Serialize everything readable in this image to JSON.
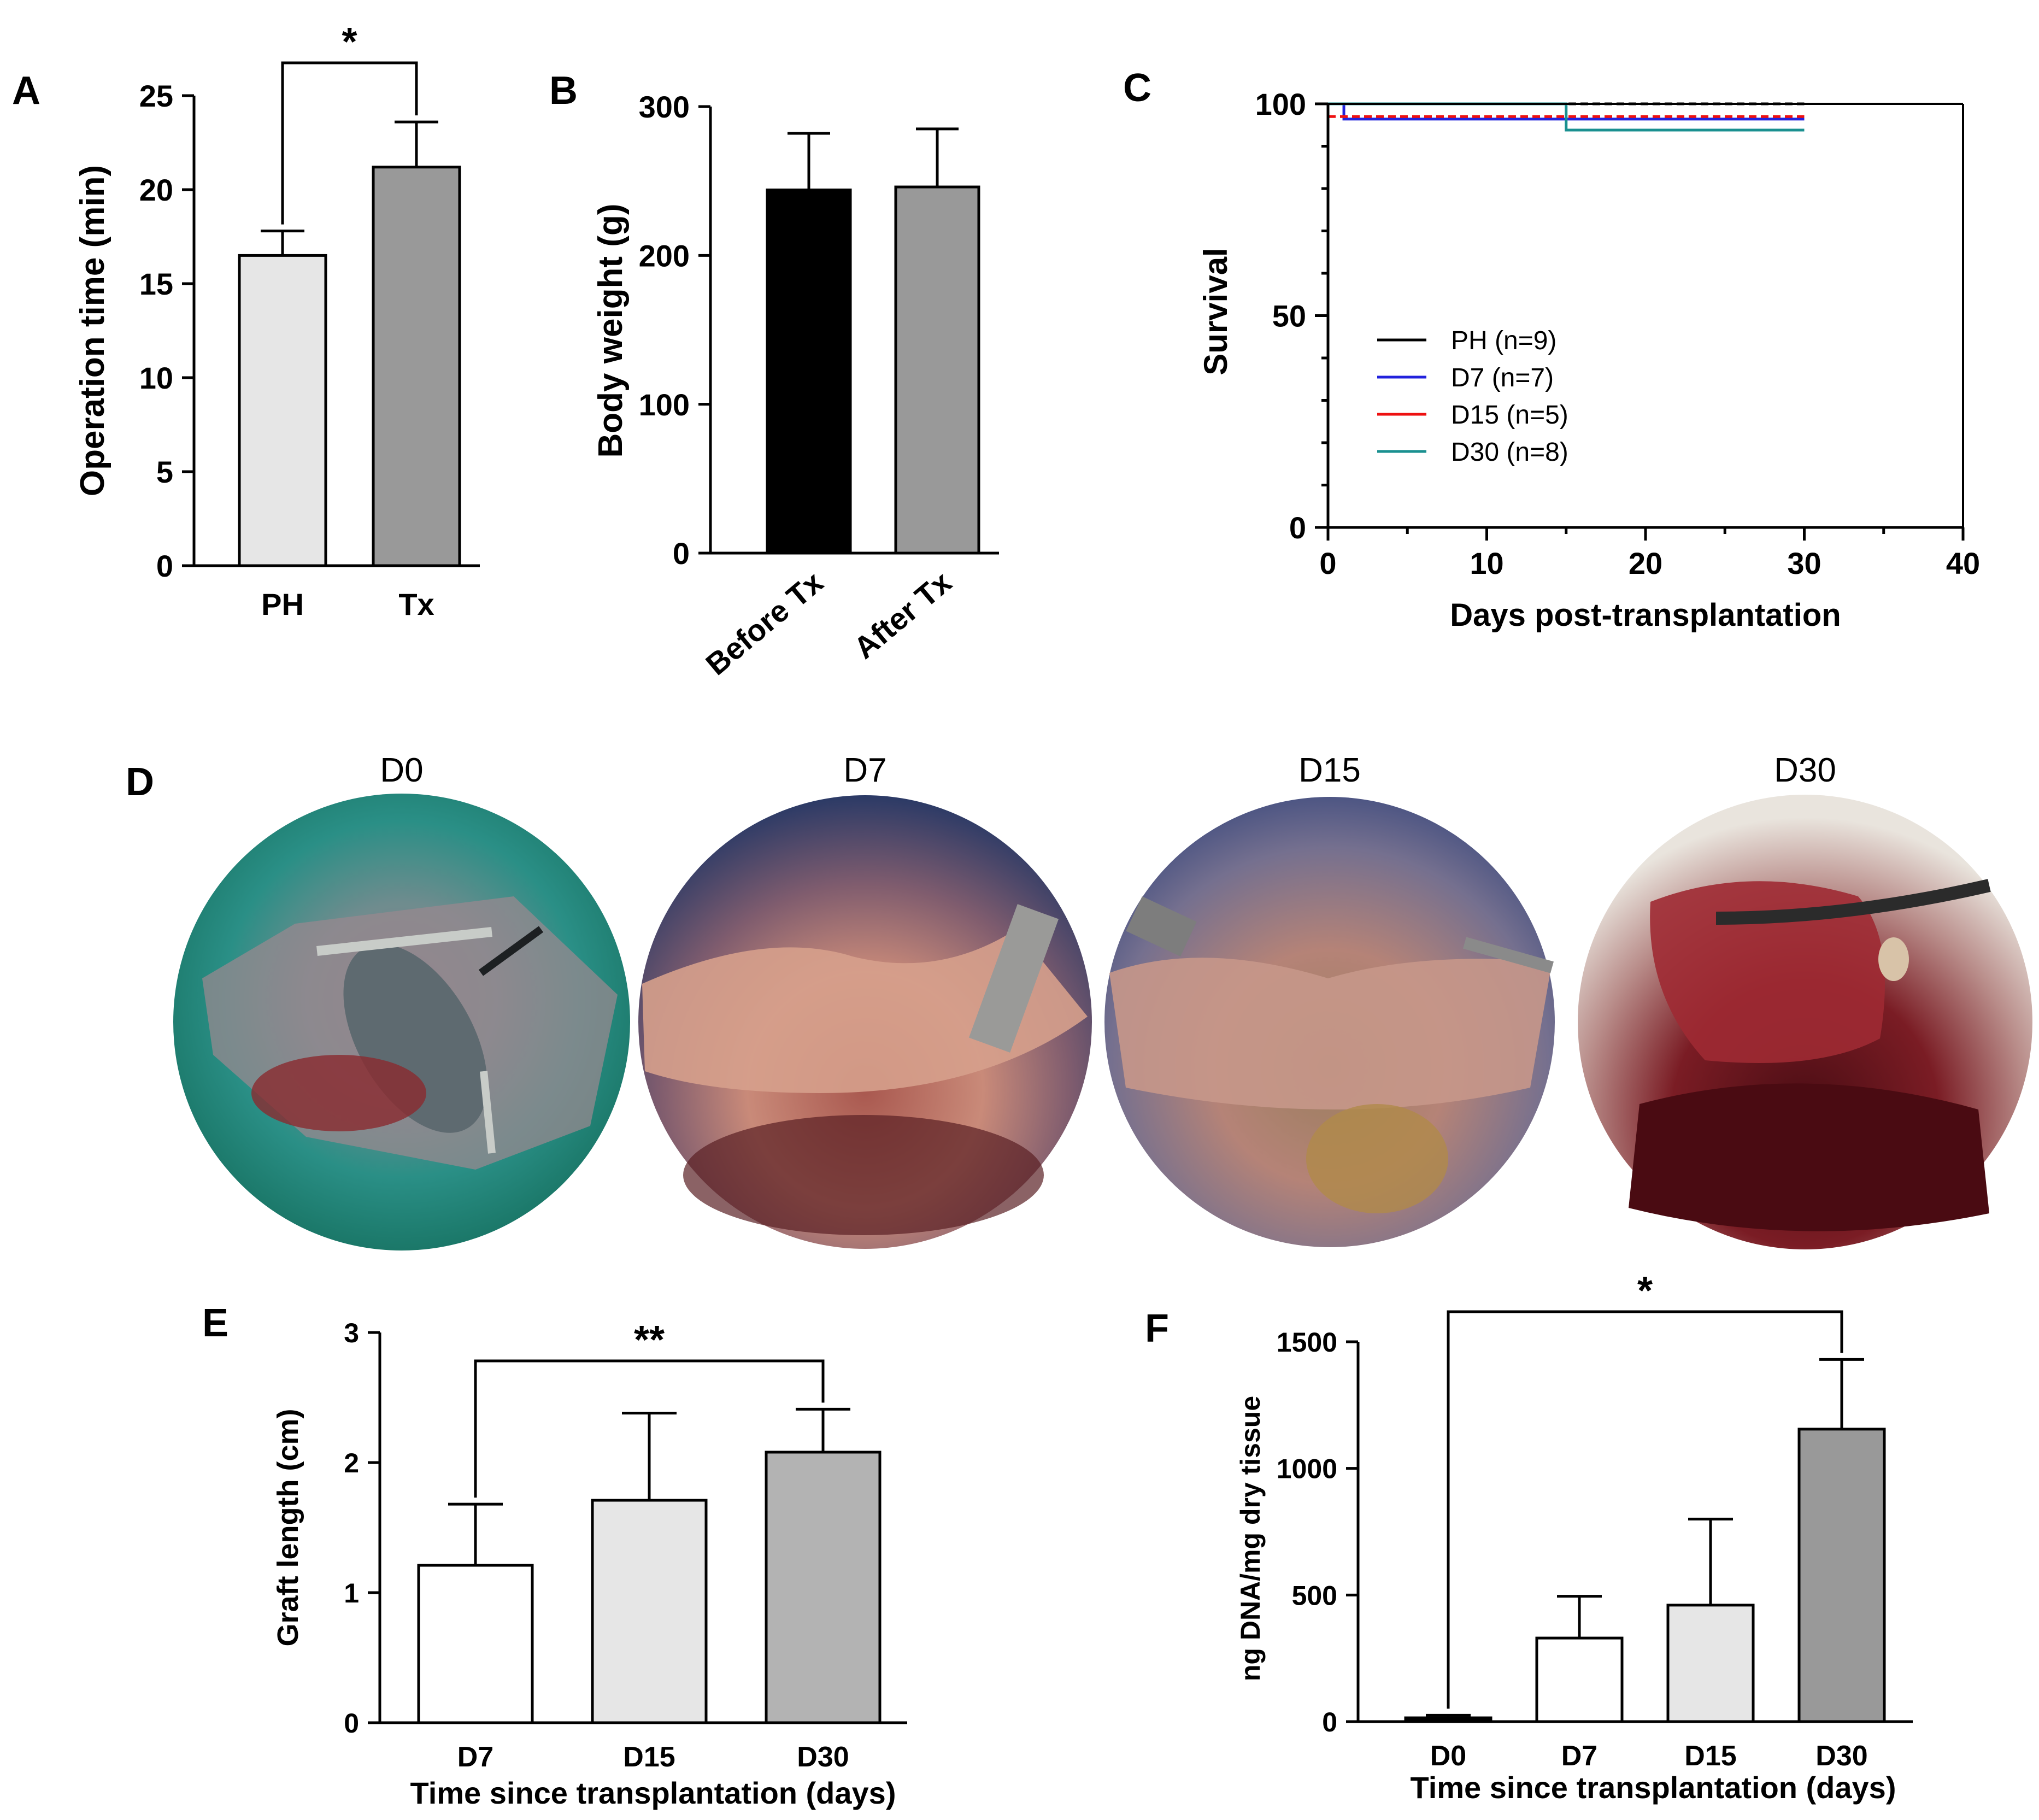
{
  "colors": {
    "light_gray": "#e6e6e6",
    "mid_gray": "#999999",
    "dark_gray": "#b3b3b3",
    "black": "#000000",
    "white": "#ffffff",
    "km_PH": "#000000",
    "km_D7": "#2222dd",
    "km_D15": "#ee1111",
    "km_D30": "#1a9090"
  },
  "panels": {
    "A": "A",
    "B": "B",
    "C": "C",
    "D": "D",
    "E": "E",
    "F": "F"
  },
  "photos": {
    "labels": [
      "D0",
      "D7",
      "D15",
      "D30"
    ],
    "descriptions_icons": [
      "surgery-photo-d0",
      "graft-photo-d7",
      "graft-photo-d15",
      "graft-photo-d30"
    ]
  },
  "chart_data": [
    {
      "panel": "A",
      "type": "bar",
      "title": "",
      "xlabel": "",
      "ylabel": "Operation time (min)",
      "categories": [
        "PH",
        "Tx"
      ],
      "values": [
        16.5,
        21.2
      ],
      "errors": [
        1.3,
        2.4
      ],
      "fills": [
        "#e6e6e6",
        "#999999"
      ],
      "ylim": [
        0,
        25
      ],
      "yticks": [
        0,
        5,
        10,
        15,
        20,
        25
      ],
      "ytick_labels": [
        "0",
        "5",
        "10",
        "15",
        "20",
        "25"
      ],
      "significance": [
        {
          "from": "PH",
          "to": "Tx",
          "label": "*"
        }
      ]
    },
    {
      "panel": "B",
      "type": "bar",
      "title": "",
      "xlabel": "",
      "ylabel": "Body weight  (g)",
      "categories": [
        "Before Tx",
        "After Tx"
      ],
      "values": [
        244,
        246
      ],
      "errors": [
        38,
        39
      ],
      "fills": [
        "#000000",
        "#999999"
      ],
      "ylim": [
        0,
        300
      ],
      "yticks": [
        0,
        100,
        200,
        300
      ],
      "ytick_labels": [
        "0",
        "100",
        "200",
        "300"
      ]
    },
    {
      "panel": "C",
      "type": "line",
      "title": "",
      "xlabel": "Days post-transplantation",
      "ylabel": "Survival",
      "xlim": [
        0,
        40
      ],
      "ylim": [
        0,
        100
      ],
      "xticks": [
        0,
        10,
        20,
        30,
        40
      ],
      "xtick_labels": [
        "0",
        "10",
        "20",
        "30",
        "40"
      ],
      "yticks": [
        0,
        50,
        100
      ],
      "ytick_labels": [
        "0",
        "50",
        "100"
      ],
      "legend_position": "center-left",
      "series": [
        {
          "name": "PH (n=9)",
          "color": "#000000",
          "dashed": true,
          "x": [
            0,
            30
          ],
          "y": [
            100,
            100
          ]
        },
        {
          "name": "D7 (n=7)",
          "color": "#2222dd",
          "dashed": false,
          "x": [
            0,
            1,
            1,
            30
          ],
          "y": [
            100,
            100,
            96.4,
            96.4
          ]
        },
        {
          "name": "D15 (n=5)",
          "color": "#ee1111",
          "dashed": true,
          "x": [
            0,
            30
          ],
          "y": [
            97,
            97
          ]
        },
        {
          "name": "D30 (n=8)",
          "color": "#1a9090",
          "dashed": false,
          "x": [
            0,
            15,
            15,
            30
          ],
          "y": [
            100,
            100,
            93.8,
            93.8
          ]
        }
      ]
    },
    {
      "panel": "E",
      "type": "bar",
      "title": "",
      "xlabel": "Time since transplantation (days)",
      "ylabel": "Graft length (cm)",
      "categories": [
        "D7",
        "D15",
        "D30"
      ],
      "values": [
        1.21,
        1.71,
        2.08
      ],
      "errors": [
        0.47,
        0.67,
        0.33
      ],
      "fills": [
        "#ffffff",
        "#e6e6e6",
        "#b3b3b3"
      ],
      "ylim": [
        0,
        3
      ],
      "yticks": [
        0,
        1,
        2,
        3
      ],
      "ytick_labels": [
        "0",
        "1",
        "2",
        "3"
      ],
      "significance": [
        {
          "from": "D7",
          "to": "D30",
          "label": "**"
        }
      ]
    },
    {
      "panel": "F",
      "type": "bar",
      "title": "",
      "xlabel": "Time since transplantation (days)",
      "ylabel": "ng DNA/mg dry tissue",
      "categories": [
        "D0",
        "D7",
        "D15",
        "D30"
      ],
      "values": [
        15,
        330,
        460,
        1155
      ],
      "errors": [
        10,
        165,
        340,
        275
      ],
      "fills": [
        "#000000",
        "#ffffff",
        "#e6e6e6",
        "#999999"
      ],
      "ylim": [
        0,
        1500
      ],
      "yticks": [
        0,
        500,
        1000,
        1500
      ],
      "ytick_labels": [
        "0",
        "500",
        "1000",
        "1500"
      ],
      "significance": [
        {
          "from": "D0",
          "to": "D30",
          "label": "*"
        }
      ]
    }
  ]
}
